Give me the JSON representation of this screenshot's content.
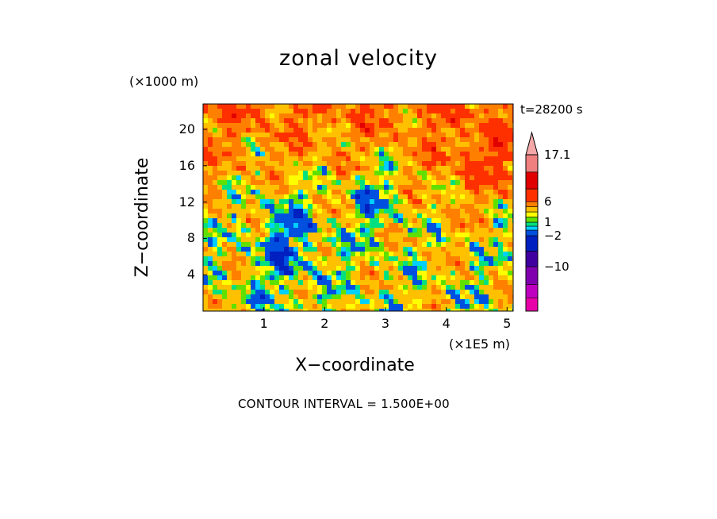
{
  "chart_data": {
    "type": "heatmap",
    "title": "zonal velocity",
    "xlabel": "X−coordinate",
    "ylabel": "Z−coordinate",
    "x_unit": "(×1E5 m)",
    "y_unit": "(×1000 m)",
    "time_label": "t=28200 s",
    "annotation": "CONTOUR INTERVAL = 1.500E+00",
    "xlim": [
      0,
      5.1
    ],
    "ylim": [
      0,
      22.8
    ],
    "x_ticks": [
      "1",
      "2",
      "3",
      "4",
      "5"
    ],
    "x_tick_values": [
      1,
      2,
      3,
      4,
      5
    ],
    "y_ticks": [
      "4",
      "8",
      "12",
      "16",
      "20"
    ],
    "y_tick_values": [
      4,
      8,
      12,
      16,
      20
    ],
    "colorbar": {
      "labels": [
        "17.1",
        "6",
        "1",
        "−2",
        "−10"
      ],
      "label_values": [
        17.1,
        6,
        1,
        -2,
        -10
      ],
      "levels": [
        -20,
        -17,
        -14,
        -10,
        -6,
        -2,
        0,
        0.5,
        1,
        1.5,
        2,
        4,
        6,
        9,
        13,
        17.1
      ],
      "colors": [
        "#e800a8",
        "#c000c0",
        "#8000b0",
        "#4000a0",
        "#0020c0",
        "#0050e0",
        "#00d0ff",
        "#00e080",
        "#60e000",
        "#ffff00",
        "#ffc000",
        "#ff8000",
        "#ff3000",
        "#e00000",
        "#f08080",
        "#f4a8a8"
      ],
      "extend": "max"
    },
    "field_description": "turbulent velocity field; mostly 0 to 6 (yellow/orange/green) with scattered negative (blue) eddies, strongest positive near top",
    "field_range": [
      -6,
      10
    ]
  }
}
